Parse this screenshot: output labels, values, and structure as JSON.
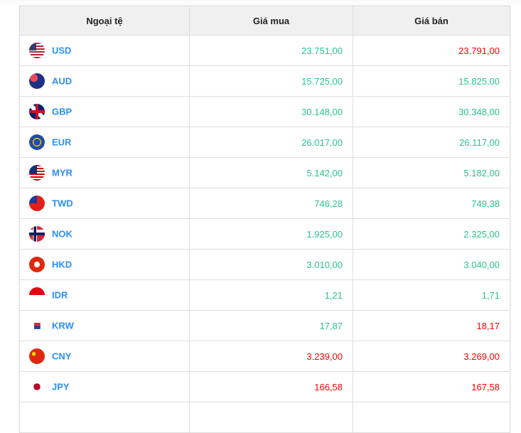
{
  "header": {
    "currency": "Ngoại tệ",
    "buy": "Giá mua",
    "sell": "Giá bán"
  },
  "colors": {
    "up": "#2bc48a",
    "down": "#ff0000",
    "code": "#2a8ff7"
  },
  "rows": [
    {
      "code": "USD",
      "flag": "us-flag-icon",
      "buy": "23.751,00",
      "buy_color": "up",
      "sell": "23.791,00",
      "sell_color": "down"
    },
    {
      "code": "AUD",
      "flag": "au-flag-icon",
      "buy": "15.725,00",
      "buy_color": "up",
      "sell": "15.825,00",
      "sell_color": "up"
    },
    {
      "code": "GBP",
      "flag": "gb-flag-icon",
      "buy": "30.148,00",
      "buy_color": "up",
      "sell": "30.348,00",
      "sell_color": "up"
    },
    {
      "code": "EUR",
      "flag": "eu-flag-icon",
      "buy": "26.017,00",
      "buy_color": "up",
      "sell": "26.117,00",
      "sell_color": "up"
    },
    {
      "code": "MYR",
      "flag": "my-flag-icon",
      "buy": "5.142,00",
      "buy_color": "up",
      "sell": "5.182,00",
      "sell_color": "up"
    },
    {
      "code": "TWD",
      "flag": "tw-flag-icon",
      "buy": "746,28",
      "buy_color": "up",
      "sell": "749,38",
      "sell_color": "up"
    },
    {
      "code": "NOK",
      "flag": "no-flag-icon",
      "buy": "1.925,00",
      "buy_color": "up",
      "sell": "2.325,00",
      "sell_color": "up"
    },
    {
      "code": "HKD",
      "flag": "hk-flag-icon",
      "buy": "3.010,00",
      "buy_color": "up",
      "sell": "3.040,00",
      "sell_color": "up"
    },
    {
      "code": "IDR",
      "flag": "id-flag-icon",
      "buy": "1,21",
      "buy_color": "up",
      "sell": "1,71",
      "sell_color": "up"
    },
    {
      "code": "KRW",
      "flag": "kr-flag-icon",
      "buy": "17,87",
      "buy_color": "up",
      "sell": "18,17",
      "sell_color": "down"
    },
    {
      "code": "CNY",
      "flag": "cn-flag-icon",
      "buy": "3.239,00",
      "buy_color": "down",
      "sell": "3.269,00",
      "sell_color": "down"
    },
    {
      "code": "JPY",
      "flag": "jp-flag-icon",
      "buy": "166,58",
      "buy_color": "down",
      "sell": "167,58",
      "sell_color": "down"
    },
    {
      "code": "",
      "flag": "",
      "buy": "",
      "buy_color": "up",
      "sell": "",
      "sell_color": "up"
    }
  ]
}
